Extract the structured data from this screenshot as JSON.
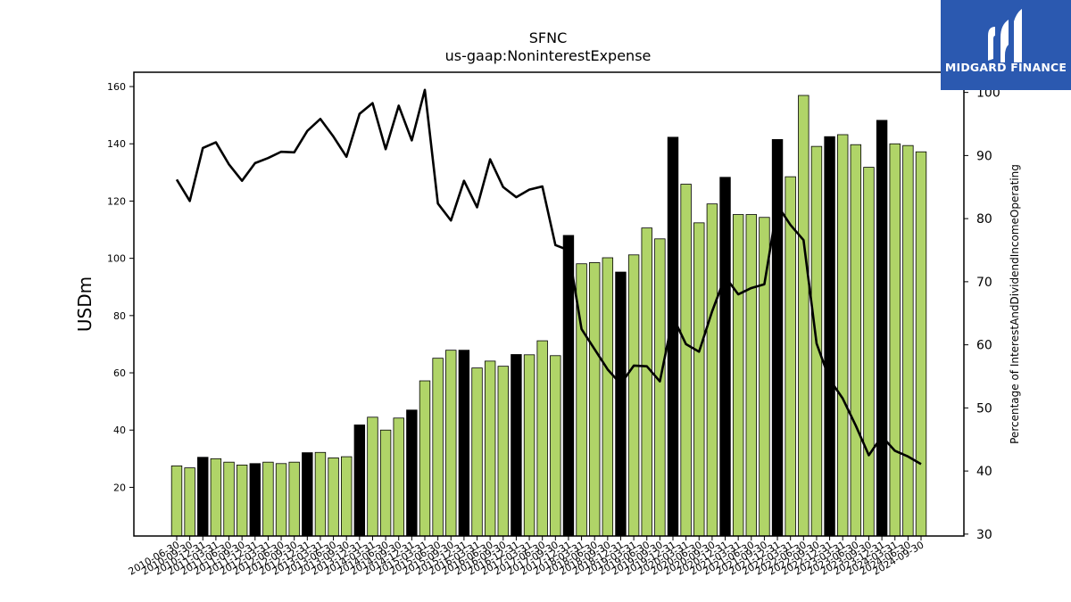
{
  "logo": {
    "text": "MIDGARD FINANCE"
  },
  "chart_data": {
    "type": "bar+line",
    "title": "SFNC",
    "subtitle": "us-gaap:NoninterestExpense",
    "ylabel": "USDm",
    "y2label": "Percentage of InterestAndDividendIncomeOperating",
    "ylim": [
      3,
      165
    ],
    "y2lim": [
      29.7,
      103.2
    ],
    "yticks": [
      20,
      40,
      60,
      80,
      100,
      120,
      140,
      160
    ],
    "y2ticks": [
      30,
      40,
      50,
      60,
      70,
      80,
      90,
      100
    ],
    "grid": false,
    "colors": {
      "bar_normal": "#b0d468",
      "bar_highlight": "#000000",
      "line": "#000000"
    },
    "categories": [
      "2010-06-30",
      "2010-09-30",
      "2010-12-31",
      "2011-03-31",
      "2011-06-30",
      "2011-09-30",
      "2011-12-31",
      "2012-03-31",
      "2012-06-30",
      "2012-09-30",
      "2012-12-31",
      "2013-03-31",
      "2013-06-30",
      "2013-09-30",
      "2013-12-31",
      "2014-03-31",
      "2014-06-30",
      "2014-09-30",
      "2014-12-31",
      "2015-03-31",
      "2015-06-30",
      "2015-09-30",
      "2015-12-31",
      "2016-03-31",
      "2016-06-30",
      "2016-09-30",
      "2016-12-31",
      "2017-03-31",
      "2017-06-30",
      "2017-09-30",
      "2017-12-31",
      "2018-03-31",
      "2018-06-30",
      "2018-09-30",
      "2018-12-31",
      "2019-03-31",
      "2019-06-30",
      "2019-09-30",
      "2019-12-31",
      "2020-03-31",
      "2020-06-30",
      "2020-09-30",
      "2020-12-31",
      "2021-03-31",
      "2021-06-30",
      "2021-09-30",
      "2021-12-31",
      "2022-03-31",
      "2022-06-30",
      "2022-09-30",
      "2022-12-31",
      "2023-03-31",
      "2023-06-30",
      "2023-09-30",
      "2023-12-31",
      "2024-03-31",
      "2024-06-30",
      "2024-09-30"
    ],
    "series": [
      {
        "kind": "bar",
        "values": [
          27.5,
          26.8,
          30.5,
          30.0,
          28.8,
          27.8,
          28.3,
          28.8,
          28.3,
          28.8,
          32.1,
          32.2,
          30.3,
          30.7,
          41.8,
          44.5,
          40.0,
          44.2,
          47.0,
          57.2,
          65.1,
          67.9,
          67.9,
          61.7,
          64.1,
          62.3,
          66.4,
          66.3,
          71.2,
          66.0,
          108.0,
          98.1,
          98.5,
          100.2,
          95.2,
          101.2,
          110.6,
          106.8,
          142.3,
          125.9,
          112.4,
          119.0,
          128.3,
          115.3,
          115.3,
          114.3,
          141.5,
          128.5,
          156.9,
          139.1,
          142.5,
          143.2,
          139.7,
          131.8,
          148.2,
          140.0,
          139.4,
          137.2
        ],
        "highlight": [
          false,
          false,
          true,
          false,
          false,
          false,
          true,
          false,
          false,
          false,
          true,
          false,
          false,
          false,
          true,
          false,
          false,
          false,
          true,
          false,
          false,
          false,
          true,
          false,
          false,
          false,
          true,
          false,
          false,
          false,
          true,
          false,
          false,
          false,
          true,
          false,
          false,
          false,
          true,
          false,
          false,
          false,
          true,
          false,
          false,
          false,
          true,
          false,
          false,
          false,
          true,
          false,
          false,
          false,
          true,
          false,
          false,
          false
        ]
      },
      {
        "kind": "line",
        "axis": "right",
        "values": [
          86.2,
          82.8,
          91.2,
          92.1,
          88.6,
          86.0,
          88.8,
          89.6,
          90.6,
          90.5,
          93.9,
          95.8,
          93.0,
          89.8,
          96.6,
          98.3,
          91.0,
          97.9,
          92.4,
          100.4,
          82.4,
          79.7,
          86.0,
          81.8,
          89.4,
          85.0,
          83.4,
          84.6,
          85.1,
          75.8,
          75.0,
          62.5,
          59.3,
          56.1,
          53.8,
          56.7,
          56.6,
          54.2,
          64.4,
          60.1,
          58.9,
          65.3,
          70.8,
          68.0,
          69.0,
          69.6,
          82.1,
          79.0,
          76.6,
          60.2,
          54.5,
          51.5,
          47.2,
          42.5,
          45.5,
          43.2,
          42.3,
          41.1
        ]
      }
    ]
  }
}
